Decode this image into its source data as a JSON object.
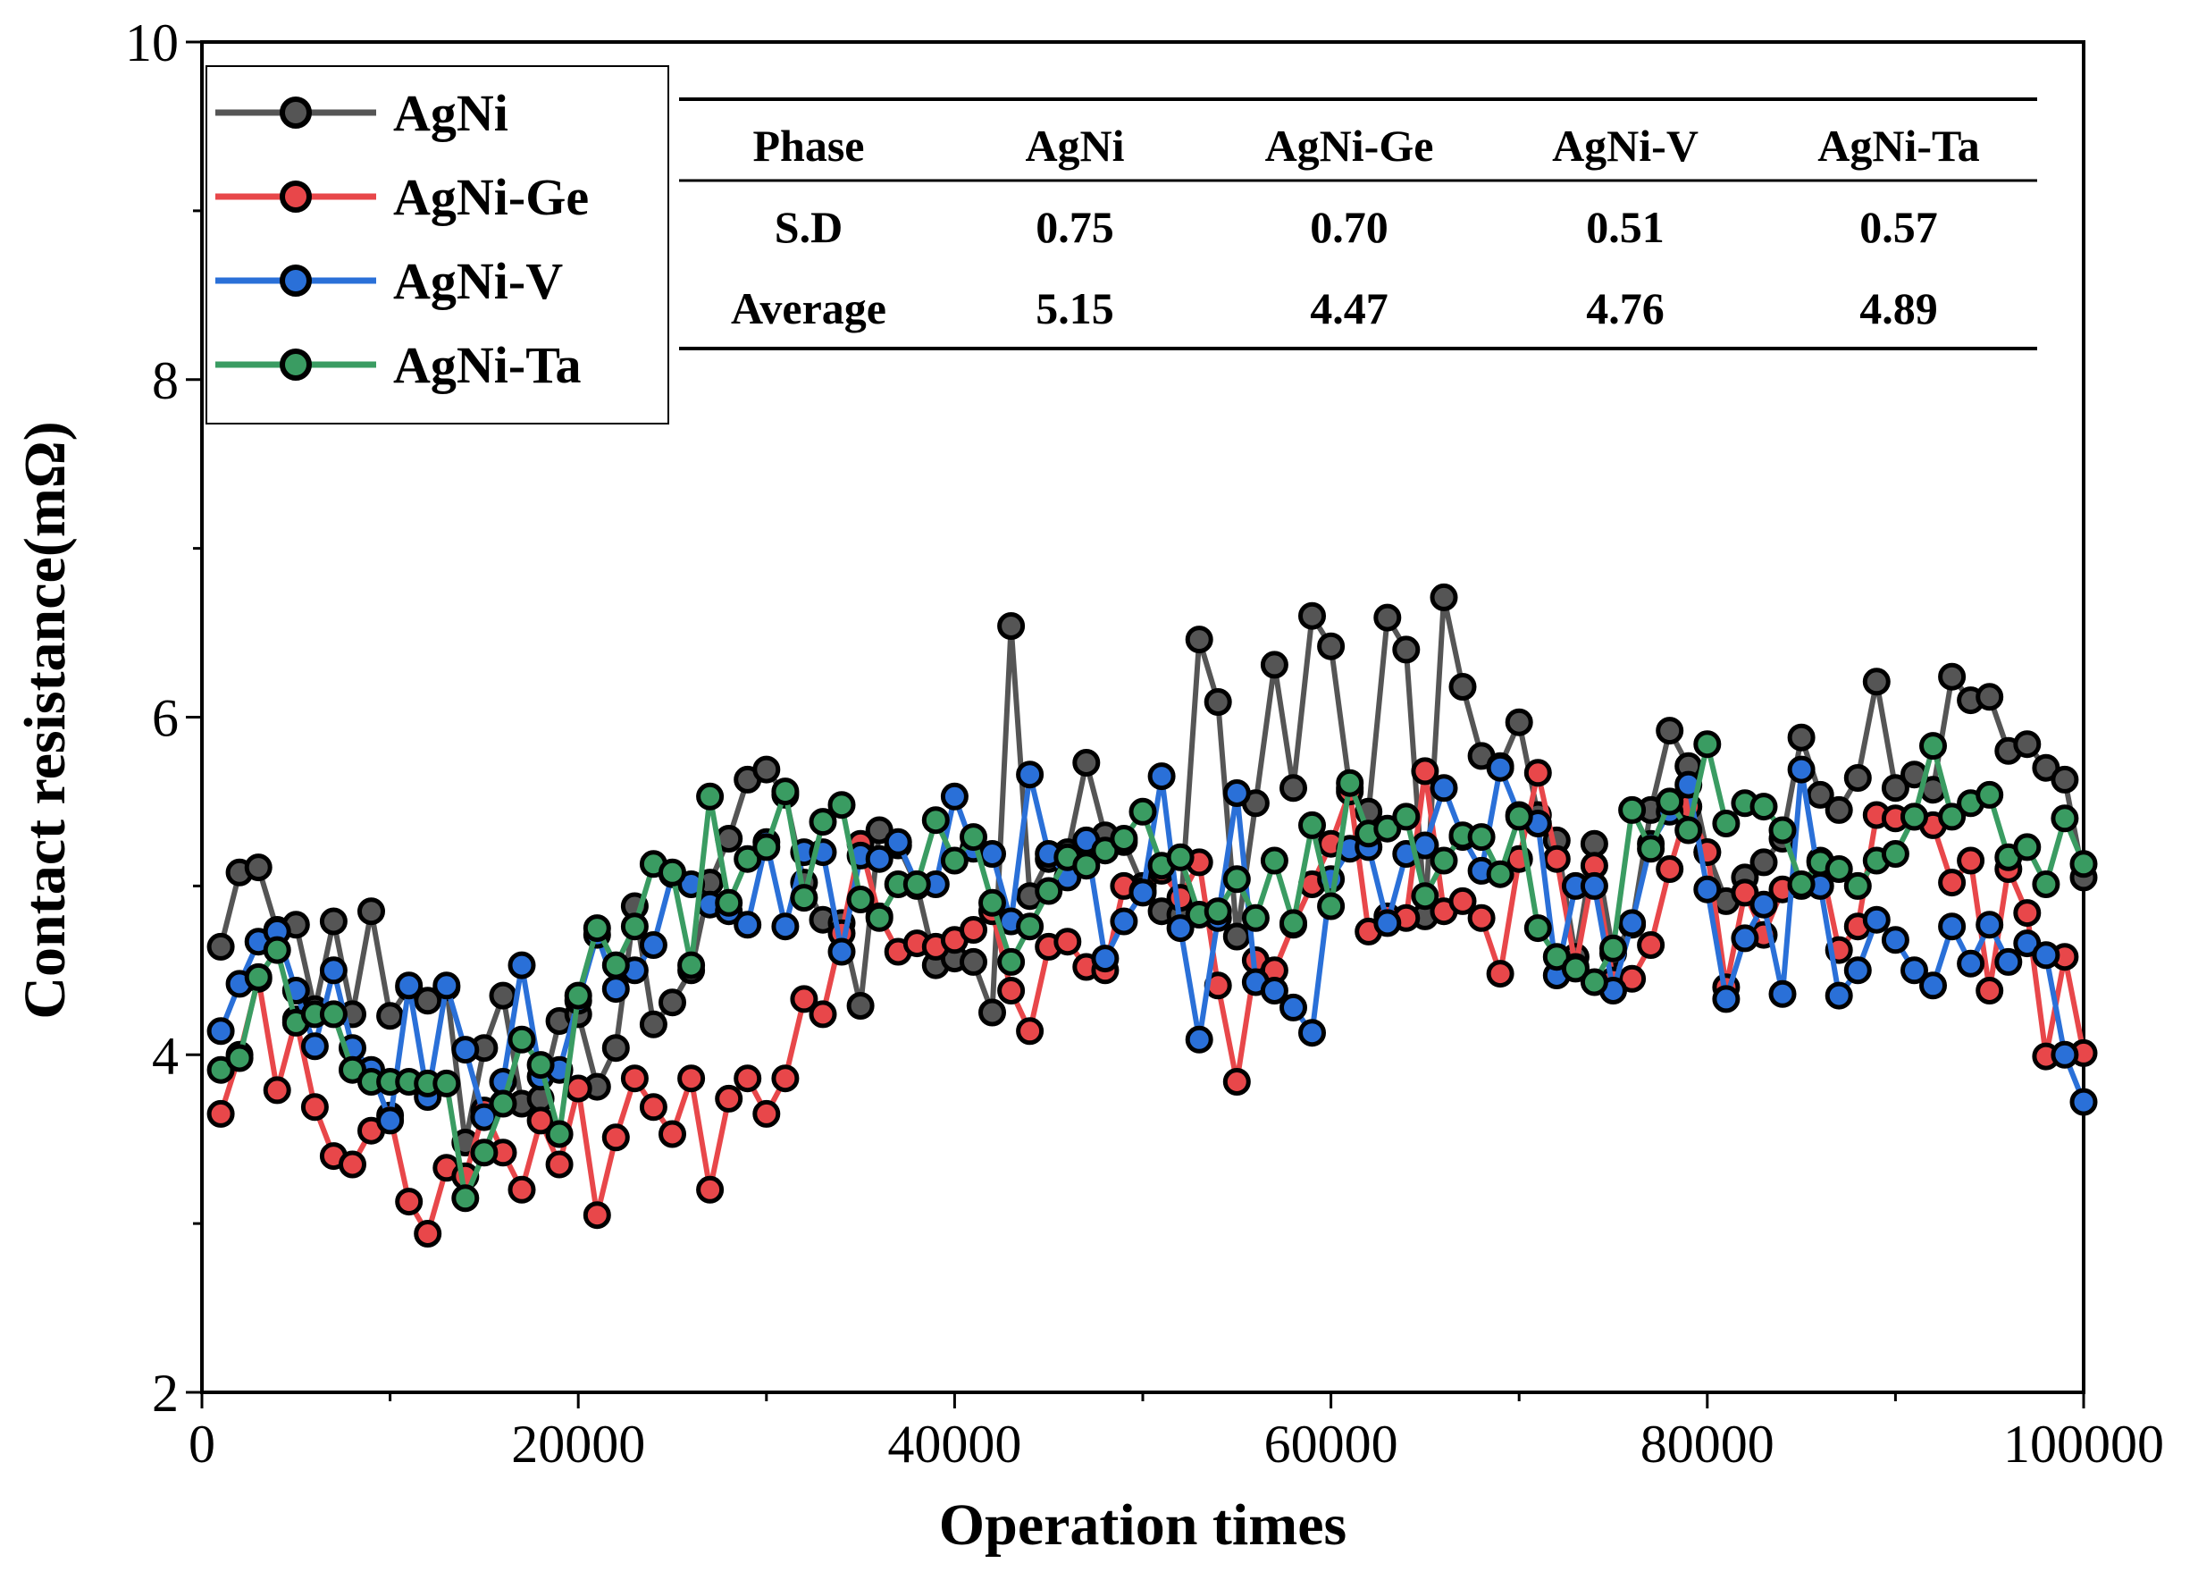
{
  "chart_data": {
    "type": "line",
    "xlabel": "Operation times",
    "ylabel": "Contact resistance(mΩ)",
    "xlim": [
      0,
      100000
    ],
    "ylim": [
      2,
      10
    ],
    "x_ticks": [
      "0",
      "20000",
      "40000",
      "60000",
      "80000",
      "100000"
    ],
    "y_ticks": [
      "2",
      "4",
      "6",
      "8",
      "10"
    ],
    "grid": false,
    "legend_position": "top-left",
    "x": [
      1000,
      2000,
      3000,
      4000,
      5000,
      6000,
      7000,
      8000,
      9000,
      10000,
      11000,
      12000,
      13000,
      14000,
      15000,
      16000,
      17000,
      18000,
      19000,
      20000,
      21000,
      22000,
      23000,
      24000,
      25000,
      26000,
      27000,
      28000,
      29000,
      30000,
      31000,
      32000,
      33000,
      34000,
      35000,
      36000,
      37000,
      38000,
      39000,
      40000,
      41000,
      42000,
      43000,
      44000,
      45000,
      46000,
      47000,
      48000,
      49000,
      50000,
      51000,
      52000,
      53000,
      54000,
      55000,
      56000,
      57000,
      58000,
      59000,
      60000,
      61000,
      62000,
      63000,
      64000,
      65000,
      66000,
      67000,
      68000,
      69000,
      70000,
      71000,
      72000,
      73000,
      74000,
      75000,
      76000,
      77000,
      78000,
      79000,
      80000,
      81000,
      82000,
      83000,
      84000,
      85000,
      86000,
      87000,
      88000,
      89000,
      90000,
      91000,
      92000,
      93000,
      94000,
      95000,
      96000,
      97000,
      98000,
      99000,
      100000
    ],
    "series": [
      {
        "name": "AgNi",
        "color": "#555555",
        "values": [
          4.64,
          5.08,
          5.11,
          4.74,
          4.77,
          4.27,
          4.79,
          4.24,
          4.85,
          4.23,
          4.4,
          4.32,
          4.4,
          3.48,
          4.04,
          4.35,
          3.71,
          3.74,
          4.2,
          4.24,
          3.81,
          4.04,
          4.88,
          4.18,
          4.31,
          4.5,
          5.02,
          5.28,
          5.63,
          5.69,
          5.54,
          5.02,
          4.8,
          4.78,
          4.29,
          5.33,
          5.24,
          5.0,
          4.53,
          4.57,
          4.55,
          4.25,
          6.54,
          4.94,
          5.16,
          5.2,
          5.73,
          5.3,
          5.26,
          5.0,
          4.85,
          4.83,
          6.46,
          6.09,
          4.7,
          5.49,
          6.31,
          5.58,
          6.6,
          6.42,
          5.58,
          5.44,
          6.59,
          6.4,
          4.82,
          6.71,
          6.18,
          5.77,
          5.71,
          5.97,
          5.42,
          5.27,
          4.58,
          5.25,
          4.6,
          4.77,
          5.45,
          5.92,
          5.71,
          5.2,
          4.91,
          5.05,
          5.14,
          5.28,
          5.88,
          5.54,
          5.45,
          5.64,
          6.21,
          5.58,
          5.66,
          5.57,
          6.24,
          6.1,
          6.12,
          5.8,
          5.84,
          5.7,
          5.63,
          5.05
        ]
      },
      {
        "name": "AgNi-Ge",
        "color": "#e8474a",
        "values": [
          3.65,
          4.0,
          4.45,
          3.79,
          4.21,
          3.69,
          3.4,
          3.35,
          3.55,
          3.64,
          3.13,
          2.94,
          3.33,
          3.28,
          3.67,
          3.42,
          3.2,
          3.61,
          3.35,
          3.8,
          3.05,
          3.51,
          3.86,
          3.69,
          3.53,
          3.86,
          3.2,
          3.74,
          3.86,
          3.65,
          3.86,
          4.33,
          4.24,
          4.72,
          5.25,
          4.82,
          4.61,
          4.66,
          4.64,
          4.68,
          4.74,
          4.85,
          4.38,
          4.14,
          4.64,
          4.67,
          4.52,
          4.5,
          5.0,
          4.97,
          5.09,
          4.93,
          5.14,
          4.41,
          3.84,
          4.56,
          4.5,
          4.77,
          5.01,
          5.25,
          5.56,
          4.73,
          4.82,
          4.81,
          5.68,
          4.85,
          4.91,
          4.81,
          4.48,
          5.16,
          5.67,
          5.16,
          4.52,
          5.12,
          4.44,
          4.45,
          4.65,
          5.1,
          5.47,
          5.2,
          4.4,
          4.96,
          4.71,
          4.98,
          5.0,
          5.15,
          4.62,
          4.76,
          5.42,
          5.4,
          5.41,
          5.36,
          5.02,
          5.15,
          4.38,
          5.1,
          4.84,
          3.99,
          4.58,
          4.01
        ]
      },
      {
        "name": "AgNi-V",
        "color": "#2a70d8",
        "values": [
          4.14,
          4.42,
          4.67,
          4.73,
          4.38,
          4.05,
          4.5,
          4.04,
          3.91,
          3.61,
          4.41,
          3.75,
          4.41,
          4.03,
          3.63,
          3.84,
          4.53,
          3.87,
          3.91,
          4.32,
          4.71,
          4.39,
          4.5,
          4.65,
          5.07,
          5.01,
          4.89,
          4.85,
          4.77,
          5.26,
          4.76,
          5.2,
          5.2,
          4.61,
          5.18,
          5.16,
          5.26,
          5.01,
          5.01,
          5.53,
          5.22,
          5.19,
          4.79,
          5.66,
          5.19,
          5.05,
          5.27,
          4.57,
          4.79,
          4.96,
          5.65,
          4.75,
          4.09,
          4.81,
          5.55,
          4.43,
          4.38,
          4.28,
          4.13,
          5.04,
          5.22,
          5.23,
          4.78,
          5.19,
          5.24,
          5.58,
          5.29,
          5.09,
          5.7,
          5.42,
          5.37,
          4.47,
          5.0,
          5.0,
          4.38,
          4.78,
          5.25,
          5.44,
          5.6,
          4.98,
          4.33,
          4.69,
          4.89,
          4.36,
          5.69,
          5.0,
          4.35,
          4.5,
          4.8,
          4.68,
          4.5,
          4.41,
          4.76,
          4.54,
          4.77,
          4.55,
          4.66,
          4.59,
          4.0,
          3.72
        ]
      },
      {
        "name": "AgNi-Ta",
        "color": "#3a9c62",
        "values": [
          3.91,
          3.98,
          4.46,
          4.62,
          4.19,
          4.24,
          4.24,
          3.91,
          3.84,
          3.84,
          3.84,
          3.83,
          3.83,
          3.15,
          3.42,
          3.71,
          4.09,
          3.94,
          3.53,
          4.35,
          4.75,
          4.53,
          4.76,
          5.13,
          5.08,
          4.53,
          5.53,
          4.9,
          5.16,
          5.23,
          5.56,
          4.93,
          5.38,
          5.48,
          4.92,
          4.81,
          5.01,
          5.01,
          5.39,
          5.15,
          5.29,
          4.9,
          4.55,
          4.76,
          4.97,
          5.17,
          5.12,
          5.21,
          5.28,
          5.44,
          5.12,
          5.17,
          4.83,
          4.85,
          5.04,
          4.81,
          5.15,
          4.78,
          5.36,
          4.88,
          5.61,
          5.31,
          5.34,
          5.41,
          4.94,
          5.15,
          5.3,
          5.29,
          5.07,
          5.41,
          4.75,
          4.58,
          4.51,
          4.43,
          4.63,
          5.45,
          5.22,
          5.5,
          5.33,
          5.84,
          5.37,
          5.49,
          5.47,
          5.33,
          5.01,
          5.14,
          5.1,
          5.0,
          5.15,
          5.19,
          5.41,
          5.83,
          5.41,
          5.49,
          5.54,
          5.17,
          5.23,
          5.01,
          5.4,
          5.13
        ]
      }
    ]
  },
  "table": {
    "headers": [
      "Phase",
      "AgNi",
      "AgNi-Ge",
      "AgNi-V",
      "AgNi-Ta"
    ],
    "rows": [
      [
        "S.D",
        "0.75",
        "0.70",
        "0.51",
        "0.57"
      ],
      [
        "Average",
        "5.15",
        "4.47",
        "4.76",
        "4.89"
      ]
    ]
  }
}
